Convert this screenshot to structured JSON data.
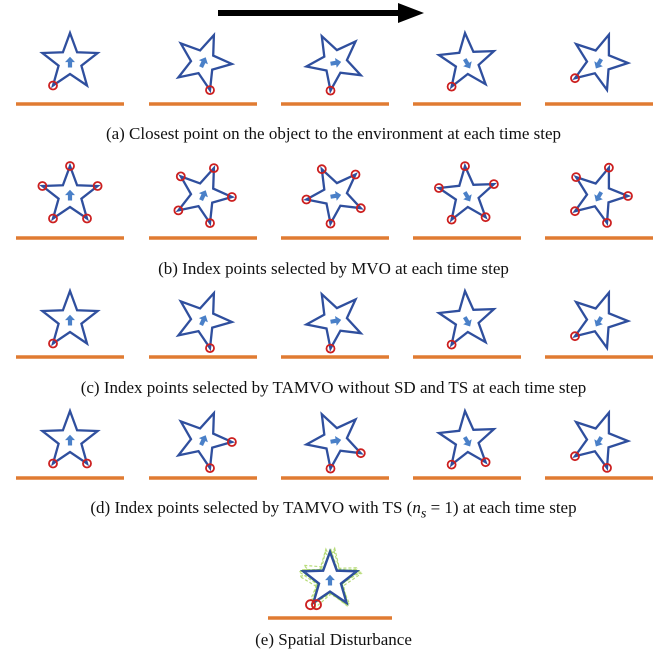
{
  "colors": {
    "star_stroke": "#2f4f9e",
    "star_fill": "#ffffff",
    "arrow": "#4a80c8",
    "index_point": "#cc1f1f",
    "ground": "#e07b32",
    "time_arrow": "#000000",
    "disturbance_stroke": "#3a8f3a",
    "disturbance_fill": "#b8dc7a"
  },
  "time_arrow": {
    "icon": "time-direction-arrow"
  },
  "star_orientations_deg": [
    0,
    22,
    45,
    68,
    92
  ],
  "arrow_orientations_deg": [
    0,
    25,
    80,
    150,
    210
  ],
  "rows": [
    {
      "id": "a",
      "caption": "(a) Closest point on the object to the environment at each time step",
      "index_points": [
        [
          3
        ],
        [
          2
        ],
        [
          2
        ],
        [
          2
        ],
        [
          2
        ]
      ]
    },
    {
      "id": "b",
      "caption": "(b) Index points selected by MVO at each time step",
      "index_points": [
        [
          0,
          1,
          2,
          3,
          4
        ],
        [
          0,
          1,
          2,
          3,
          4
        ],
        [
          0,
          1,
          2,
          3,
          4
        ],
        [
          0,
          1,
          2,
          3,
          4
        ],
        [
          0,
          1,
          2,
          3,
          4
        ]
      ]
    },
    {
      "id": "c",
      "caption": "(c) Index points selected by TAMVO without SD and TS at each time step",
      "index_points": [
        [
          3
        ],
        [
          2
        ],
        [
          2
        ],
        [
          2
        ],
        [
          2
        ]
      ]
    },
    {
      "id": "d",
      "caption_prefix": "(d) Index points selected by TAMVO with TS (",
      "caption_math": "n",
      "caption_sub": "s",
      "caption_eq": " = 1)",
      "caption_suffix": " at each time step",
      "index_points": [
        [
          2,
          3
        ],
        [
          1,
          2
        ],
        [
          1,
          2
        ],
        [
          1,
          2
        ],
        [
          1,
          2
        ]
      ]
    }
  ],
  "panel_e": {
    "caption": "(e) Spatial Disturbance",
    "index_points": [
      3,
      3
    ]
  }
}
